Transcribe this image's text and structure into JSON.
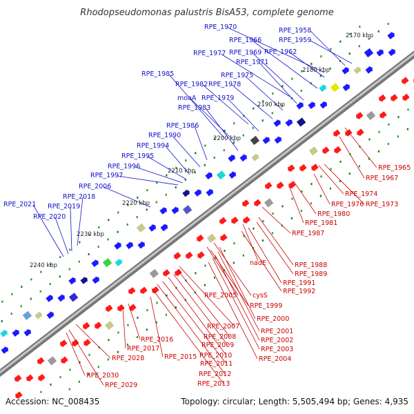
{
  "title": "Rhodopseudomonas palustris BisA53, complete genome",
  "footer": {
    "accession": "Accession: NC_008435",
    "topology": "Topology: circular; Length: 5,505,494 bp; Genes: 4,935"
  },
  "colors": {
    "plus_label": "#1010c8",
    "minus_label": "#c80000",
    "plus_gene": "#1a1aff",
    "minus_gene": "#ff1a1a",
    "backbone": "#8a8a8a"
  },
  "scale_ticks": [
    "2170 kbp",
    "2180 kbp",
    "2190 kbp",
    "2200 kbp",
    "2210 kbp",
    "2220 kbp",
    "2230 kbp",
    "2240 kbp"
  ],
  "plus_labels": [
    "RPE_1970",
    "RPE_1958",
    "RPE_1966",
    "RPE_1959",
    "RPE_1977",
    "RPE_1969",
    "RPE_1962",
    "RPE_1971",
    "RPE_1985",
    "RPE_1975",
    "RPE_1982",
    "RPE_1978",
    "moaA",
    "RPE_1979",
    "RPE_1983",
    "RPE_1986",
    "RPE_1990",
    "RPE_1994",
    "RPE_1995",
    "RPE_1996",
    "RPE_1997",
    "RPE_2006",
    "RPE_2018",
    "RPE_2021",
    "RPE_2019",
    "RPE_2020"
  ],
  "minus_labels": [
    "RPE_1965",
    "RPE_1967",
    "RPE_1974",
    "RPE_1976",
    "RPE_1973",
    "RPE_1980",
    "RPE_1981",
    "RPE_1987",
    "nadE",
    "RPE_1988",
    "RPE_1989",
    "RPE_1991",
    "RPE_1992",
    "RPE_2005",
    "cysS",
    "RPE_1999",
    "RPE_2000",
    "RPE_2007",
    "RPE_2001",
    "RPE_2008",
    "RPE_2002",
    "RPE_2009",
    "RPE_2003",
    "RPE_2010",
    "RPE_2016",
    "RPE_2004",
    "RPE_2017",
    "RPE_2011",
    "RPE_2015",
    "RPE_2028",
    "RPE_2012",
    "RPE_2013",
    "RPE_2030",
    "RPE_2029"
  ]
}
